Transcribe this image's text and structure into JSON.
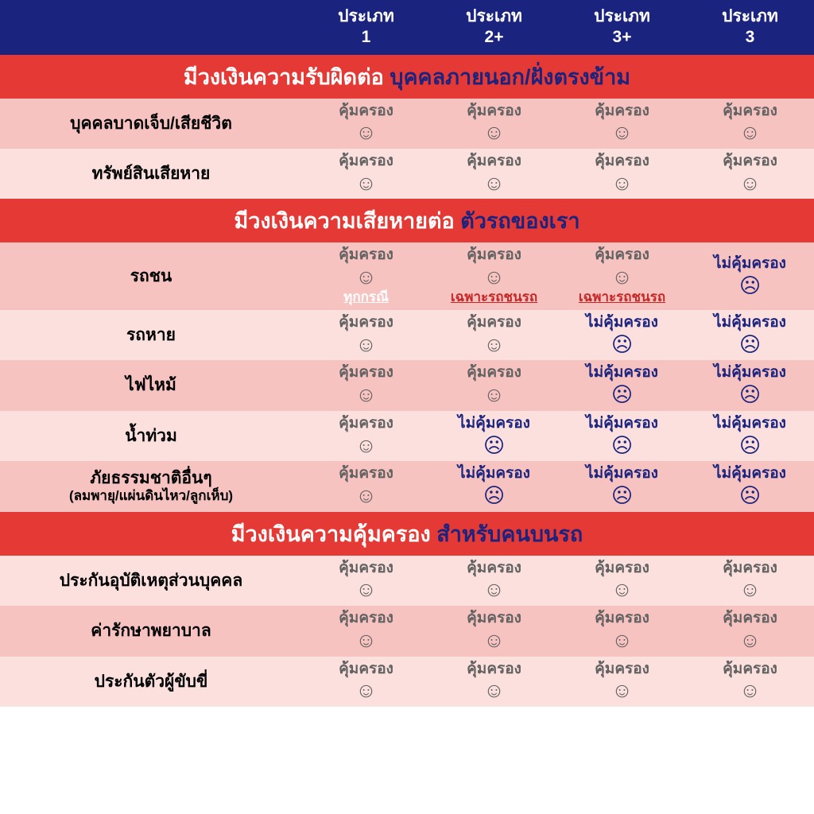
{
  "colors": {
    "header_bg": "#1a237e",
    "header_fg": "#ffffff",
    "section_bg": "#e53935",
    "section_fg1": "#ffffff",
    "section_fg2": "#1a237e",
    "row_even": "#f7c3c0",
    "row_odd": "#fbe0de",
    "label_fg": "#000000",
    "covered_fg": "#616161",
    "notcovered_fg": "#1a237e",
    "note_white": "#ffffff",
    "note_red": "#c62828"
  },
  "header": {
    "blank": "",
    "cols": [
      "ประเภท\n1",
      "ประเภท\n2+",
      "ประเภท\n3+",
      "ประเภท\n3"
    ]
  },
  "strings": {
    "covered": "คุ้มครอง",
    "not_covered": "ไม่คุ้มครอง",
    "smile": "☺",
    "frown": "☹"
  },
  "sections": [
    {
      "title1": "มีวงเงินความรับผิดต่อ ",
      "title2": "บุคคลภายนอก/ฝั่งตรงข้าม",
      "rows": [
        {
          "label": "บุคคลบาดเจ็บ/เสียชีวิต",
          "sub": "",
          "cells": [
            {
              "covered": true
            },
            {
              "covered": true
            },
            {
              "covered": true
            },
            {
              "covered": true
            }
          ]
        },
        {
          "label": "ทรัพย์สินเสียหาย",
          "sub": "",
          "cells": [
            {
              "covered": true
            },
            {
              "covered": true
            },
            {
              "covered": true
            },
            {
              "covered": true
            }
          ]
        }
      ]
    },
    {
      "title1": "มีวงเงินความเสียหายต่อ ",
      "title2": "ตัวรถของเรา",
      "rows": [
        {
          "label": "รถชน",
          "sub": "",
          "cells": [
            {
              "covered": true,
              "note": "ทุกกรณี",
              "note_color": "note_white"
            },
            {
              "covered": true,
              "note": "เฉพาะรถชนรถ",
              "note_color": "note_red"
            },
            {
              "covered": true,
              "note": "เฉพาะรถชนรถ",
              "note_color": "note_red"
            },
            {
              "covered": false
            }
          ]
        },
        {
          "label": "รถหาย",
          "sub": "",
          "cells": [
            {
              "covered": true
            },
            {
              "covered": true
            },
            {
              "covered": false
            },
            {
              "covered": false
            }
          ]
        },
        {
          "label": "ไฟไหม้",
          "sub": "",
          "cells": [
            {
              "covered": true
            },
            {
              "covered": true
            },
            {
              "covered": false
            },
            {
              "covered": false
            }
          ]
        },
        {
          "label": "น้ำท่วม",
          "sub": "",
          "cells": [
            {
              "covered": true
            },
            {
              "covered": false
            },
            {
              "covered": false
            },
            {
              "covered": false
            }
          ]
        },
        {
          "label": "ภัยธรรมชาติอื่นๆ",
          "sub": "(ลมพายุ/แผ่นดินไหว/ลูกเห็บ)",
          "cells": [
            {
              "covered": true
            },
            {
              "covered": false
            },
            {
              "covered": false
            },
            {
              "covered": false
            }
          ]
        }
      ]
    },
    {
      "title1": "มีวงเงินความคุ้มครอง ",
      "title2": "สำหรับคนบนรถ",
      "rows": [
        {
          "label": "ประกันอุบัติเหตุส่วนบุคคล",
          "sub": "",
          "cells": [
            {
              "covered": true
            },
            {
              "covered": true
            },
            {
              "covered": true
            },
            {
              "covered": true
            }
          ]
        },
        {
          "label": "ค่ารักษาพยาบาล",
          "sub": "",
          "cells": [
            {
              "covered": true
            },
            {
              "covered": true
            },
            {
              "covered": true
            },
            {
              "covered": true
            }
          ]
        },
        {
          "label": "ประกันตัวผู้ขับขี่",
          "sub": "",
          "cells": [
            {
              "covered": true
            },
            {
              "covered": true
            },
            {
              "covered": true
            },
            {
              "covered": true
            }
          ]
        }
      ]
    }
  ]
}
